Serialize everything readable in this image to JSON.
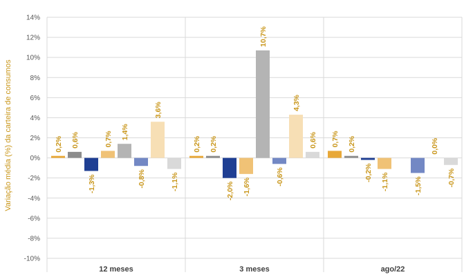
{
  "chart_data": {
    "type": "bar",
    "ylabel": "Variação média (%) da carteira de consumos",
    "categories": [
      "12 meses",
      "3 meses",
      "ago/22"
    ],
    "ylim": [
      -10,
      14
    ],
    "yticks": [
      "-10%",
      "-8%",
      "-6%",
      "-4%",
      "-2%",
      "0%",
      "2%",
      "4%",
      "6%",
      "8%",
      "10%",
      "12%",
      "14%"
    ],
    "grid": true,
    "series": [
      {
        "color": "#e8a838",
        "values": [
          0.2,
          0.2,
          0.7
        ],
        "labels": [
          "0,2%",
          "0,2%",
          "0,7%"
        ]
      },
      {
        "color": "#8c8c8c",
        "values": [
          0.6,
          0.2,
          0.2
        ],
        "labels": [
          "0,6%",
          "0,2%",
          "0,2%"
        ]
      },
      {
        "color": "#1f3f93",
        "values": [
          -1.3,
          -2.0,
          -0.2
        ],
        "labels": [
          "-1,3%",
          "-2,0%",
          "-0,2%"
        ]
      },
      {
        "color": "#f0c276",
        "values": [
          0.7,
          -1.6,
          -1.1
        ],
        "labels": [
          "0,7%",
          "-1,6%",
          "-1,1%"
        ]
      },
      {
        "color": "#b4b4b4",
        "values": [
          1.4,
          10.7,
          0.0
        ],
        "labels": [
          "1,4%",
          "10,7%",
          ""
        ]
      },
      {
        "color": "#7388c4",
        "values": [
          -0.8,
          -0.6,
          -1.5
        ],
        "labels": [
          "-0,8%",
          "-0,6%",
          "-1,5%"
        ]
      },
      {
        "color": "#f7dfb5",
        "values": [
          3.6,
          4.3,
          0.0
        ],
        "labels": [
          "3,6%",
          "4,3%",
          "0,0%"
        ]
      },
      {
        "color": "#d9d9d9",
        "values": [
          -1.1,
          0.6,
          -0.7
        ],
        "labels": [
          "-1,1%",
          "0,6%",
          "-0,7%"
        ]
      }
    ]
  }
}
